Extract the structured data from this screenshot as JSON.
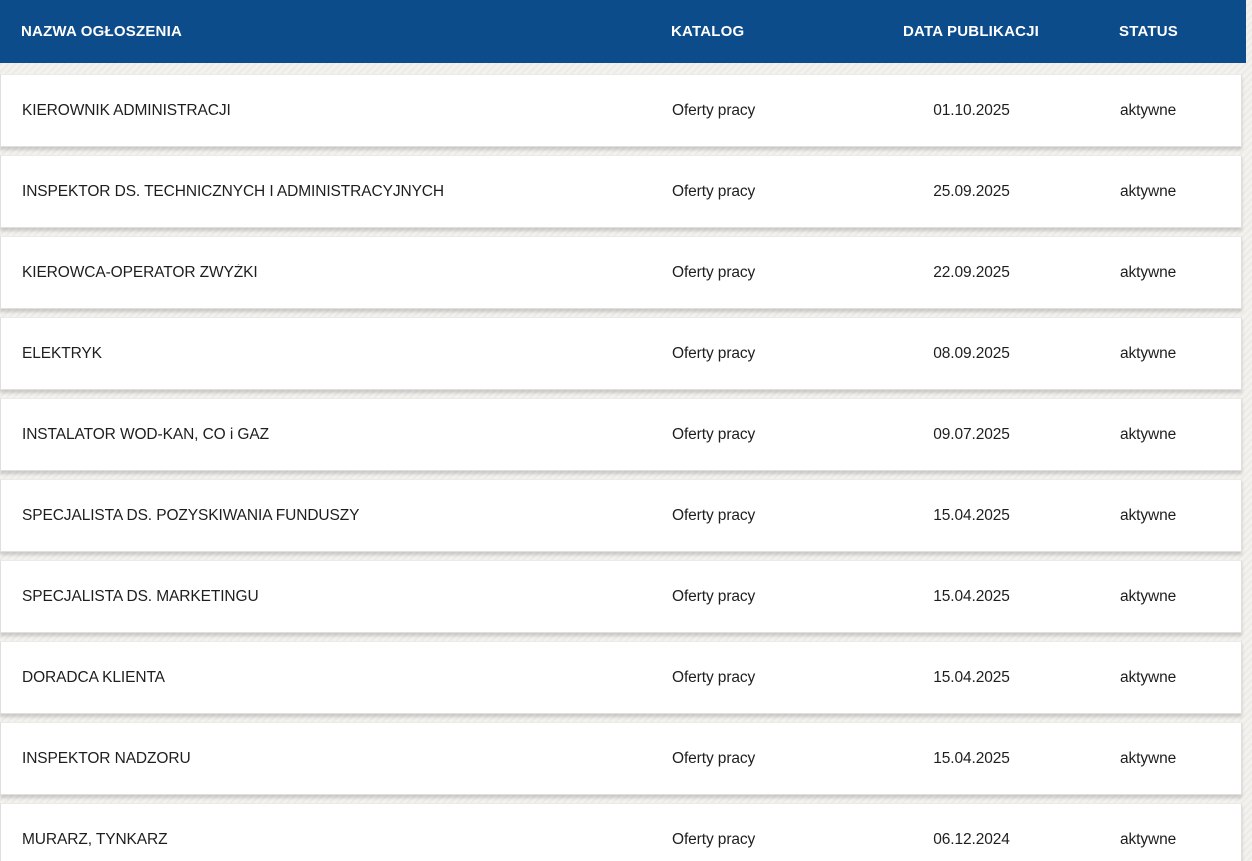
{
  "colors": {
    "header_bg": "#0d4c8a",
    "header_text": "#ffffff",
    "row_bg": "#ffffff",
    "row_text": "#1e1e1e",
    "page_bg": "#f4f2ef"
  },
  "table": {
    "columns": [
      {
        "label": "NAZWA OGŁOSZENIA"
      },
      {
        "label": "KATALOG"
      },
      {
        "label": "DATA PUBLIKACJI"
      },
      {
        "label": "STATUS"
      }
    ],
    "rows": [
      {
        "name": "KIEROWNIK ADMINISTRACJI",
        "katalog": "Oferty pracy",
        "date": "01.10.2025",
        "status": "aktywne"
      },
      {
        "name": "INSPEKTOR DS. TECHNICZNYCH I ADMINISTRACYJNYCH",
        "katalog": "Oferty pracy",
        "date": "25.09.2025",
        "status": "aktywne"
      },
      {
        "name": "KIEROWCA-OPERATOR ZWYŻKI",
        "katalog": "Oferty pracy",
        "date": "22.09.2025",
        "status": "aktywne"
      },
      {
        "name": "ELEKTRYK",
        "katalog": "Oferty pracy",
        "date": "08.09.2025",
        "status": "aktywne"
      },
      {
        "name": "INSTALATOR WOD-KAN, CO i GAZ",
        "katalog": "Oferty pracy",
        "date": "09.07.2025",
        "status": "aktywne"
      },
      {
        "name": "SPECJALISTA DS. POZYSKIWANIA FUNDUSZY",
        "katalog": "Oferty pracy",
        "date": "15.04.2025",
        "status": "aktywne"
      },
      {
        "name": "SPECJALISTA DS. MARKETINGU",
        "katalog": "Oferty pracy",
        "date": "15.04.2025",
        "status": "aktywne"
      },
      {
        "name": "DORADCA KLIENTA",
        "katalog": "Oferty pracy",
        "date": "15.04.2025",
        "status": "aktywne"
      },
      {
        "name": "INSPEKTOR NADZORU",
        "katalog": "Oferty pracy",
        "date": "15.04.2025",
        "status": "aktywne"
      },
      {
        "name": "MURARZ, TYNKARZ",
        "katalog": "Oferty pracy",
        "date": "06.12.2024",
        "status": "aktywne"
      }
    ]
  }
}
